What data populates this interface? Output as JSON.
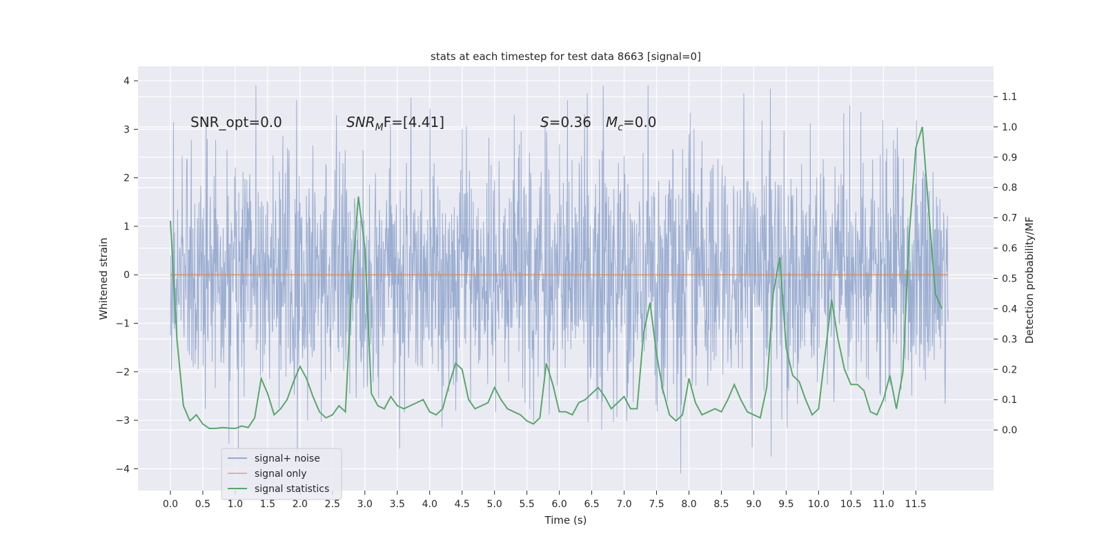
{
  "chart_data": {
    "type": "line",
    "title": "stats at each timestep for test data 8663 [signal=0]",
    "xlabel": "Time (s)",
    "ylabel_left": "Whitened strain",
    "ylabel_right": "Detection probability/MF",
    "xlim": [
      -0.5,
      12.7
    ],
    "ylim_left": [
      -4.45,
      4.3
    ],
    "ylim_right": [
      -0.2,
      1.2
    ],
    "x_ticks": [
      "0.0",
      "0.5",
      "1.0",
      "1.5",
      "2.0",
      "2.5",
      "3.0",
      "3.5",
      "4.0",
      "4.5",
      "5.0",
      "5.5",
      "6.0",
      "6.5",
      "7.0",
      "7.5",
      "8.0",
      "8.5",
      "9.0",
      "9.5",
      "10.0",
      "10.5",
      "11.0",
      "11.5"
    ],
    "y_ticks_left": [
      "−4",
      "−3",
      "−2",
      "−1",
      "0",
      "1",
      "2",
      "3",
      "4"
    ],
    "y_ticks_right": [
      "0.0",
      "0.1",
      "0.2",
      "0.3",
      "0.4",
      "0.5",
      "0.6",
      "0.7",
      "0.8",
      "0.9",
      "1.0",
      "1.1"
    ],
    "grid": true,
    "legend_position": "lower-left",
    "annotations": {
      "snr_opt": "SNR_opt=0.0",
      "snr_mf_main": "SNR",
      "snr_mf_sub": "M",
      "snr_mf_rest": "F=[4.41]",
      "s_stat_symbol": "S",
      "s_stat_value": "=0.36",
      "mc_main": "M",
      "mc_sub": "c",
      "mc_value": "=0.0"
    },
    "colors": {
      "background": "#eaeaf2",
      "noise": "#4c72b0",
      "signal": "#dd8452",
      "stats": "#55a868",
      "grid": "#ffffff"
    },
    "noise_series": {
      "name": "signal+ noise",
      "x_range": [
        0.0,
        12.0
      ],
      "amplitude_envelope": "approximately ±2.5 with spikes reaching +3.9 and −4.1",
      "samples": 2048
    },
    "series": [
      {
        "name": "signal only",
        "x": [
          0.0,
          12.0
        ],
        "y": [
          0.0,
          0.0
        ]
      },
      {
        "name": "signal statistics",
        "x": [
          0.0,
          0.1,
          0.2,
          0.3,
          0.4,
          0.5,
          0.6,
          0.7,
          0.8,
          0.9,
          1.0,
          1.1,
          1.2,
          1.3,
          1.4,
          1.5,
          1.6,
          1.7,
          1.8,
          1.9,
          2.0,
          2.1,
          2.2,
          2.3,
          2.4,
          2.5,
          2.6,
          2.7,
          2.8,
          2.9,
          3.0,
          3.1,
          3.2,
          3.3,
          3.4,
          3.5,
          3.6,
          3.7,
          3.8,
          3.9,
          4.0,
          4.1,
          4.2,
          4.3,
          4.4,
          4.5,
          4.6,
          4.7,
          4.8,
          4.9,
          5.0,
          5.1,
          5.2,
          5.3,
          5.4,
          5.5,
          5.6,
          5.7,
          5.8,
          5.9,
          6.0,
          6.1,
          6.2,
          6.3,
          6.4,
          6.5,
          6.6,
          6.7,
          6.8,
          6.9,
          7.0,
          7.1,
          7.2,
          7.3,
          7.4,
          7.5,
          7.6,
          7.7,
          7.8,
          7.9,
          8.0,
          8.1,
          8.2,
          8.3,
          8.4,
          8.5,
          8.6,
          8.7,
          8.8,
          8.9,
          9.0,
          9.1,
          9.2,
          9.3,
          9.4,
          9.5,
          9.6,
          9.7,
          9.8,
          9.9,
          10.0,
          10.1,
          10.2,
          10.3,
          10.4,
          10.5,
          10.6,
          10.7,
          10.8,
          10.9,
          11.0,
          11.1,
          11.2,
          11.3,
          11.4,
          11.5,
          11.6,
          11.7,
          11.8,
          11.9
        ],
        "y": [
          0.69,
          0.3,
          0.08,
          0.03,
          0.05,
          0.02,
          0.005,
          0.005,
          0.008,
          0.006,
          0.005,
          0.013,
          0.008,
          0.04,
          0.17,
          0.12,
          0.05,
          0.07,
          0.1,
          0.16,
          0.21,
          0.17,
          0.11,
          0.06,
          0.04,
          0.05,
          0.08,
          0.06,
          0.48,
          0.77,
          0.6,
          0.12,
          0.08,
          0.07,
          0.11,
          0.08,
          0.07,
          0.08,
          0.09,
          0.1,
          0.06,
          0.05,
          0.07,
          0.15,
          0.22,
          0.2,
          0.1,
          0.07,
          0.08,
          0.09,
          0.14,
          0.1,
          0.07,
          0.06,
          0.05,
          0.03,
          0.02,
          0.04,
          0.22,
          0.15,
          0.06,
          0.06,
          0.05,
          0.09,
          0.1,
          0.12,
          0.14,
          0.11,
          0.07,
          0.09,
          0.11,
          0.07,
          0.07,
          0.32,
          0.42,
          0.25,
          0.13,
          0.05,
          0.03,
          0.05,
          0.17,
          0.09,
          0.05,
          0.06,
          0.07,
          0.06,
          0.1,
          0.15,
          0.1,
          0.06,
          0.05,
          0.04,
          0.14,
          0.45,
          0.57,
          0.27,
          0.18,
          0.16,
          0.1,
          0.05,
          0.07,
          0.25,
          0.43,
          0.3,
          0.2,
          0.15,
          0.15,
          0.13,
          0.06,
          0.05,
          0.1,
          0.18,
          0.07,
          0.19,
          0.65,
          0.93,
          1.0,
          0.72,
          0.45,
          0.4
        ]
      }
    ]
  },
  "legend": {
    "items": [
      {
        "label": "signal+ noise",
        "color": "#4c72b0",
        "opacity": 0.55
      },
      {
        "label": "signal only",
        "color": "#dd8452",
        "opacity": 0.55
      },
      {
        "label": "signal statistics",
        "color": "#55a868",
        "opacity": 1.0
      }
    ]
  }
}
